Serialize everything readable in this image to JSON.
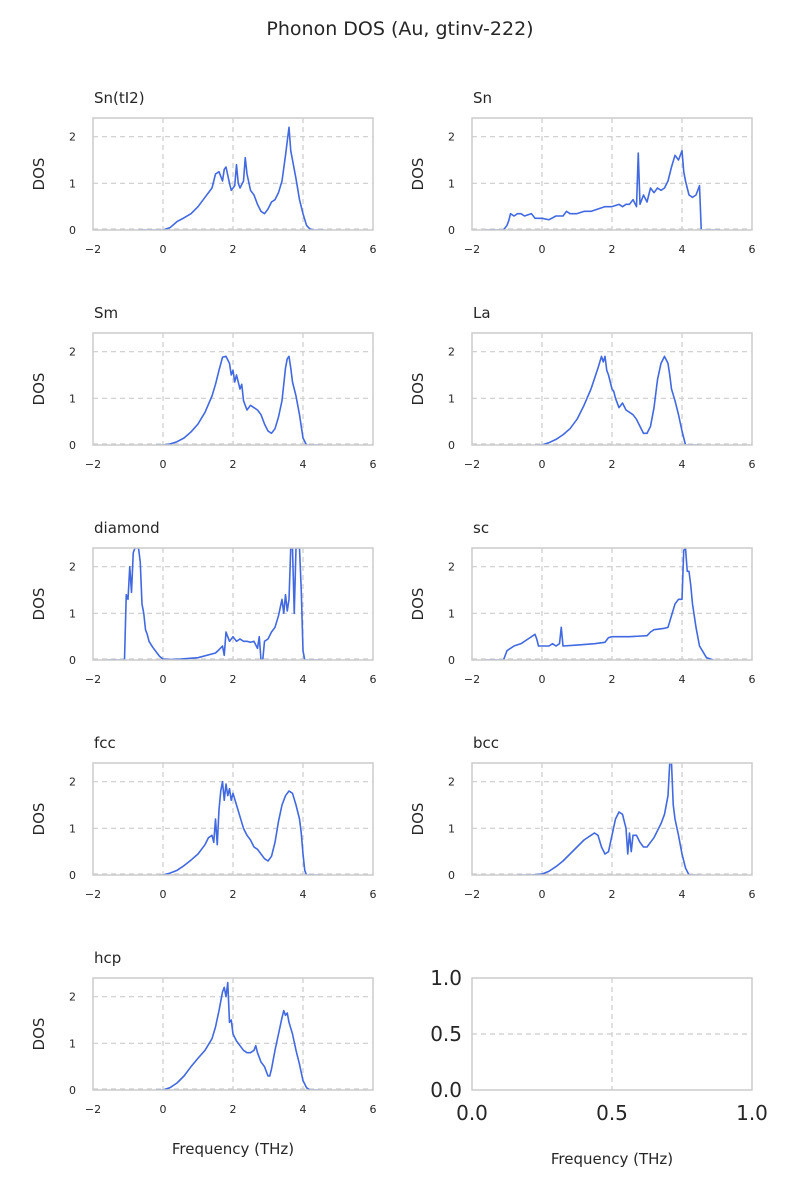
{
  "figure": {
    "title": "Phonon DOS (Au, gtinv-222)",
    "line_color": "#4169e1",
    "grid_color": "#cccccc",
    "frame_color": "#cccccc"
  },
  "chart_data": [
    {
      "type": "line",
      "title": "Sn(tI2)",
      "ylabel": "DOS",
      "xlabel": "",
      "xlim": [
        -2,
        6
      ],
      "ylim": [
        0,
        2.4
      ],
      "xticks": [
        "−2",
        "0",
        "2",
        "4",
        "6"
      ],
      "yticks": [
        "0",
        "1",
        "2"
      ],
      "grid": true,
      "series": [
        {
          "x": [
            -0.7,
            0,
            0.2,
            0.4,
            0.6,
            0.8,
            1.0,
            1.2,
            1.4,
            1.5,
            1.6,
            1.7,
            1.75,
            1.8,
            1.9,
            1.95,
            2.0,
            2.05,
            2.1,
            2.15,
            2.2,
            2.3,
            2.35,
            2.4,
            2.5,
            2.6,
            2.7,
            2.8,
            2.9,
            3.0,
            3.1,
            3.2,
            3.3,
            3.4,
            3.5,
            3.6,
            3.65,
            3.7,
            3.8,
            3.9,
            4.0,
            4.1,
            4.2,
            4.3,
            4.6
          ],
          "y": [
            0,
            0,
            0.05,
            0.18,
            0.26,
            0.35,
            0.5,
            0.7,
            0.9,
            1.2,
            1.25,
            1.05,
            1.3,
            1.35,
            1.0,
            0.85,
            0.9,
            0.95,
            1.4,
            1.0,
            0.9,
            1.05,
            1.55,
            1.2,
            0.85,
            0.75,
            0.55,
            0.4,
            0.35,
            0.45,
            0.6,
            0.65,
            0.8,
            1.05,
            1.6,
            2.2,
            1.7,
            1.5,
            1.1,
            0.65,
            0.35,
            0.1,
            0.02,
            0,
            0
          ]
        }
      ]
    },
    {
      "type": "line",
      "title": "Sn",
      "ylabel": "DOS",
      "xlabel": "",
      "xlim": [
        -2,
        6
      ],
      "ylim": [
        0,
        2.4
      ],
      "xticks": [
        "−2",
        "0",
        "2",
        "4",
        "6"
      ],
      "yticks": [
        "0",
        "1",
        "2"
      ],
      "grid": true,
      "series": [
        {
          "x": [
            -1.6,
            -1.1,
            -1.0,
            -0.95,
            -0.9,
            -0.8,
            -0.7,
            -0.6,
            -0.5,
            -0.3,
            -0.2,
            0,
            0.2,
            0.4,
            0.6,
            0.7,
            0.8,
            1.0,
            1.2,
            1.4,
            1.6,
            1.8,
            2.0,
            2.2,
            2.3,
            2.4,
            2.5,
            2.6,
            2.7,
            2.75,
            2.8,
            2.9,
            3.0,
            3.1,
            3.2,
            3.3,
            3.4,
            3.5,
            3.6,
            3.7,
            3.8,
            3.9,
            4.0,
            4.05,
            4.1,
            4.2,
            4.3,
            4.4,
            4.5,
            4.55,
            5.1
          ],
          "y": [
            0,
            0,
            0.1,
            0.2,
            0.35,
            0.3,
            0.35,
            0.35,
            0.3,
            0.35,
            0.25,
            0.25,
            0.22,
            0.3,
            0.3,
            0.4,
            0.35,
            0.35,
            0.4,
            0.4,
            0.45,
            0.5,
            0.5,
            0.55,
            0.5,
            0.55,
            0.55,
            0.65,
            0.5,
            1.65,
            0.55,
            0.75,
            0.6,
            0.9,
            0.8,
            0.9,
            0.85,
            0.9,
            1.05,
            1.35,
            1.6,
            1.5,
            1.7,
            1.25,
            1.05,
            0.75,
            0.7,
            0.75,
            0.95,
            0,
            0
          ]
        }
      ]
    },
    {
      "type": "line",
      "title": "Sm",
      "ylabel": "DOS",
      "xlabel": "",
      "xlim": [
        -2,
        6
      ],
      "ylim": [
        0,
        2.4
      ],
      "xticks": [
        "−2",
        "0",
        "2",
        "4",
        "6"
      ],
      "yticks": [
        "0",
        "1",
        "2"
      ],
      "grid": true,
      "series": [
        {
          "x": [
            -0.2,
            0,
            0.2,
            0.4,
            0.6,
            0.8,
            1.0,
            1.2,
            1.4,
            1.5,
            1.6,
            1.7,
            1.8,
            1.9,
            1.95,
            2.0,
            2.05,
            2.1,
            2.2,
            2.25,
            2.3,
            2.4,
            2.5,
            2.6,
            2.7,
            2.8,
            2.9,
            3.0,
            3.1,
            3.2,
            3.3,
            3.4,
            3.5,
            3.55,
            3.6,
            3.65,
            3.7,
            3.8,
            3.9,
            4.0,
            4.1,
            4.5
          ],
          "y": [
            0,
            0,
            0.02,
            0.07,
            0.15,
            0.28,
            0.45,
            0.7,
            1.05,
            1.3,
            1.6,
            1.88,
            1.9,
            1.75,
            1.5,
            1.6,
            1.35,
            1.5,
            1.2,
            1.3,
            0.95,
            0.75,
            0.85,
            0.8,
            0.75,
            0.65,
            0.45,
            0.3,
            0.25,
            0.35,
            0.6,
            0.95,
            1.65,
            1.85,
            1.9,
            1.65,
            1.35,
            1.05,
            0.65,
            0.15,
            0,
            0
          ]
        }
      ]
    },
    {
      "type": "line",
      "title": "La",
      "ylabel": "DOS",
      "xlabel": "",
      "xlim": [
        -2,
        6
      ],
      "ylim": [
        0,
        2.4
      ],
      "xticks": [
        "−2",
        "0",
        "2",
        "4",
        "6"
      ],
      "yticks": [
        "0",
        "1",
        "2"
      ],
      "grid": true,
      "series": [
        {
          "x": [
            -0.2,
            0,
            0.2,
            0.4,
            0.6,
            0.8,
            1.0,
            1.2,
            1.4,
            1.6,
            1.7,
            1.75,
            1.8,
            1.85,
            1.9,
            1.95,
            2.0,
            2.05,
            2.1,
            2.2,
            2.3,
            2.4,
            2.5,
            2.6,
            2.7,
            2.8,
            2.9,
            3.0,
            3.1,
            3.2,
            3.3,
            3.4,
            3.5,
            3.6,
            3.65,
            3.7,
            3.8,
            3.9,
            4.0,
            4.1,
            4.2,
            4.5
          ],
          "y": [
            0,
            0,
            0.05,
            0.12,
            0.22,
            0.35,
            0.55,
            0.85,
            1.2,
            1.65,
            1.9,
            1.78,
            1.9,
            1.6,
            1.5,
            1.35,
            1.2,
            1.15,
            1.0,
            0.8,
            0.9,
            0.75,
            0.7,
            0.65,
            0.55,
            0.4,
            0.25,
            0.25,
            0.4,
            0.8,
            1.4,
            1.75,
            1.9,
            1.75,
            1.5,
            1.2,
            0.95,
            0.65,
            0.3,
            0,
            0,
            0
          ]
        }
      ]
    },
    {
      "type": "line",
      "title": "diamond",
      "ylabel": "DOS",
      "xlabel": "",
      "xlim": [
        -2,
        6
      ],
      "ylim": [
        0,
        2.4
      ],
      "xticks": [
        "−2",
        "0",
        "2",
        "4",
        "6"
      ],
      "yticks": [
        "0",
        "1",
        "2"
      ],
      "grid": true,
      "series": [
        {
          "x": [
            -1.6,
            -1.1,
            -1.05,
            -1.0,
            -0.95,
            -0.9,
            -0.85,
            -0.8,
            -0.75,
            -0.7,
            -0.65,
            -0.6,
            -0.55,
            -0.5,
            -0.45,
            -0.4,
            -0.3,
            -0.2,
            -0.1,
            0,
            0.2,
            0.5,
            1.0,
            1.5,
            1.6,
            1.7,
            1.75,
            1.8,
            1.9,
            2.0,
            2.1,
            2.2,
            2.3,
            2.4,
            2.5,
            2.6,
            2.7,
            2.75,
            2.8,
            2.85,
            2.9,
            3.0,
            3.1,
            3.2,
            3.3,
            3.4,
            3.45,
            3.5,
            3.55,
            3.6,
            3.65,
            3.7,
            3.75,
            3.8,
            3.85,
            3.9,
            3.95,
            4.0,
            4.05,
            4.1,
            4.5
          ],
          "y": [
            0,
            0,
            1.4,
            1.3,
            2.0,
            1.45,
            2.3,
            2.4,
            2.4,
            2.4,
            2.1,
            1.2,
            1.0,
            0.65,
            0.55,
            0.4,
            0.28,
            0.18,
            0.08,
            0.02,
            0.01,
            0.02,
            0.05,
            0.15,
            0.22,
            0.3,
            0.1,
            0.6,
            0.4,
            0.5,
            0.4,
            0.45,
            0.4,
            0.4,
            0.38,
            0.4,
            0.25,
            0.5,
            0,
            0,
            0.4,
            0.45,
            0.6,
            0.7,
            0.95,
            1.3,
            1.0,
            1.4,
            1.05,
            1.3,
            2.4,
            2.4,
            1.0,
            2.4,
            2.4,
            2.4,
            1.5,
            0.2,
            0,
            0,
            0
          ]
        }
      ]
    },
    {
      "type": "line",
      "title": "sc",
      "ylabel": "DOS",
      "xlabel": "",
      "xlim": [
        -2,
        6
      ],
      "ylim": [
        0,
        2.4
      ],
      "xticks": [
        "−2",
        "0",
        "2",
        "4",
        "6"
      ],
      "yticks": [
        "0",
        "1",
        "2"
      ],
      "grid": true,
      "series": [
        {
          "x": [
            -1.6,
            -1.1,
            -1.0,
            -0.8,
            -0.6,
            -0.4,
            -0.2,
            -0.15,
            -0.1,
            0,
            0.2,
            0.3,
            0.4,
            0.5,
            0.55,
            0.6,
            1.0,
            1.5,
            1.8,
            1.9,
            2.0,
            2.5,
            3.0,
            3.1,
            3.2,
            3.5,
            3.6,
            3.8,
            3.9,
            4.0,
            4.05,
            4.1,
            4.15,
            4.2,
            4.25,
            4.3,
            4.4,
            4.5,
            4.7,
            4.9
          ],
          "y": [
            0,
            0,
            0.2,
            0.3,
            0.35,
            0.45,
            0.55,
            0.45,
            0.3,
            0.3,
            0.3,
            0.35,
            0.3,
            0.35,
            0.7,
            0.3,
            0.32,
            0.35,
            0.38,
            0.48,
            0.5,
            0.5,
            0.52,
            0.6,
            0.65,
            0.68,
            0.7,
            1.2,
            1.3,
            1.3,
            2.35,
            2.4,
            1.9,
            1.9,
            1.6,
            1.2,
            0.7,
            0.3,
            0.05,
            0
          ]
        }
      ]
    },
    {
      "type": "line",
      "title": "fcc",
      "ylabel": "DOS",
      "xlabel": "",
      "xlim": [
        -2,
        6
      ],
      "ylim": [
        0,
        2.4
      ],
      "xticks": [
        "−2",
        "0",
        "2",
        "4",
        "6"
      ],
      "yticks": [
        "0",
        "1",
        "2"
      ],
      "grid": true,
      "series": [
        {
          "x": [
            -0.1,
            0,
            0.2,
            0.4,
            0.6,
            0.8,
            1.0,
            1.2,
            1.3,
            1.4,
            1.45,
            1.5,
            1.55,
            1.6,
            1.65,
            1.7,
            1.75,
            1.8,
            1.85,
            1.9,
            1.95,
            2.0,
            2.1,
            2.2,
            2.3,
            2.4,
            2.5,
            2.6,
            2.7,
            2.8,
            2.9,
            3.0,
            3.1,
            3.2,
            3.3,
            3.4,
            3.5,
            3.6,
            3.7,
            3.8,
            3.9,
            3.95,
            4.0,
            4.05,
            4.1,
            4.5
          ],
          "y": [
            0,
            0,
            0.04,
            0.1,
            0.2,
            0.32,
            0.45,
            0.65,
            0.8,
            0.85,
            0.7,
            1.2,
            0.65,
            1.4,
            1.8,
            2.0,
            1.6,
            1.95,
            1.7,
            1.85,
            1.6,
            1.75,
            1.5,
            1.25,
            1.0,
            0.85,
            0.75,
            0.6,
            0.55,
            0.45,
            0.35,
            0.3,
            0.4,
            0.7,
            1.15,
            1.5,
            1.7,
            1.8,
            1.75,
            1.5,
            1.2,
            0.9,
            0.45,
            0.1,
            0,
            0
          ]
        }
      ]
    },
    {
      "type": "line",
      "title": "bcc",
      "ylabel": "DOS",
      "xlabel": "",
      "xlim": [
        -2,
        6
      ],
      "ylim": [
        0,
        2.4
      ],
      "xticks": [
        "−2",
        "0",
        "2",
        "4",
        "6"
      ],
      "yticks": [
        "0",
        "1",
        "2"
      ],
      "grid": true,
      "series": [
        {
          "x": [
            -0.7,
            -0.3,
            0,
            0.2,
            0.4,
            0.6,
            0.8,
            1.0,
            1.2,
            1.4,
            1.5,
            1.6,
            1.7,
            1.8,
            1.9,
            2.0,
            2.1,
            2.2,
            2.3,
            2.4,
            2.45,
            2.5,
            2.55,
            2.6,
            2.7,
            2.8,
            2.9,
            3.0,
            3.1,
            3.2,
            3.3,
            3.4,
            3.5,
            3.6,
            3.65,
            3.7,
            3.75,
            3.8,
            3.9,
            4.0,
            4.1,
            4.2,
            4.5
          ],
          "y": [
            0,
            0,
            0.02,
            0.08,
            0.18,
            0.3,
            0.45,
            0.6,
            0.75,
            0.85,
            0.9,
            0.85,
            0.6,
            0.45,
            0.5,
            0.85,
            1.2,
            1.35,
            1.3,
            1.0,
            0.45,
            0.9,
            0.5,
            0.85,
            0.85,
            0.7,
            0.6,
            0.6,
            0.7,
            0.8,
            0.95,
            1.1,
            1.3,
            1.7,
            2.4,
            2.4,
            1.5,
            1.2,
            0.85,
            0.45,
            0.15,
            0,
            0
          ]
        }
      ]
    },
    {
      "type": "line",
      "title": "hcp",
      "ylabel": "DOS",
      "xlabel": "Frequency (THz)",
      "xlim": [
        -2,
        6
      ],
      "ylim": [
        0,
        2.4
      ],
      "xticks": [
        "−2",
        "0",
        "2",
        "4",
        "6"
      ],
      "yticks": [
        "0",
        "1",
        "2"
      ],
      "grid": true,
      "series": [
        {
          "x": [
            -0.2,
            0,
            0.2,
            0.4,
            0.6,
            0.8,
            1.0,
            1.2,
            1.4,
            1.5,
            1.6,
            1.7,
            1.75,
            1.8,
            1.85,
            1.9,
            1.95,
            2.0,
            2.1,
            2.2,
            2.3,
            2.4,
            2.5,
            2.6,
            2.65,
            2.7,
            2.8,
            2.9,
            3.0,
            3.05,
            3.1,
            3.2,
            3.3,
            3.4,
            3.45,
            3.5,
            3.55,
            3.6,
            3.7,
            3.8,
            3.9,
            4.0,
            4.1,
            4.2,
            4.5
          ],
          "y": [
            0,
            0,
            0.05,
            0.15,
            0.3,
            0.5,
            0.68,
            0.85,
            1.1,
            1.35,
            1.7,
            2.1,
            2.2,
            2.0,
            2.3,
            1.45,
            1.5,
            1.2,
            1.05,
            0.95,
            0.85,
            0.8,
            0.8,
            0.85,
            0.95,
            0.8,
            0.6,
            0.5,
            0.3,
            0.3,
            0.45,
            0.85,
            1.2,
            1.55,
            1.7,
            1.6,
            1.65,
            1.45,
            1.2,
            0.85,
            0.55,
            0.2,
            0.05,
            0,
            0
          ]
        }
      ]
    },
    {
      "type": "line",
      "title": "",
      "ylabel": "",
      "xlabel": "Frequency (THz)",
      "xlim": [
        0,
        1
      ],
      "ylim": [
        0,
        1
      ],
      "xticks": [
        "0.0",
        "0.5",
        "1.0"
      ],
      "yticks": [
        "0.0",
        "0.5",
        "1.0"
      ],
      "grid": true,
      "series": []
    }
  ]
}
